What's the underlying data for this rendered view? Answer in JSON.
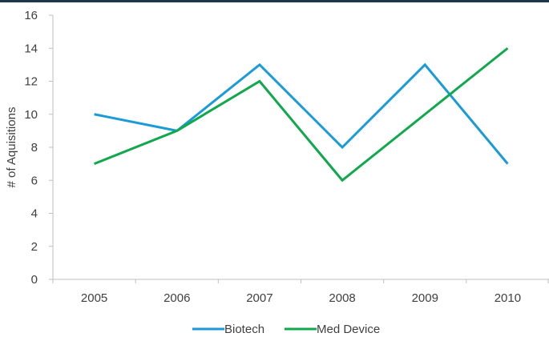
{
  "colors": {
    "top_bar": "#1f3550",
    "axis": "#bfbfbf",
    "text": "#404040"
  },
  "chart_data": {
    "type": "line",
    "title": "",
    "xlabel": "",
    "ylabel": "# of Aquisitions",
    "categories": [
      "2005",
      "2006",
      "2007",
      "2008",
      "2009",
      "2010"
    ],
    "ylim": [
      0,
      16
    ],
    "yticks": [
      0,
      2,
      4,
      6,
      8,
      10,
      12,
      14,
      16
    ],
    "grid": false,
    "legend_position": "bottom",
    "series": [
      {
        "name": "Biotech",
        "color": "#1a9ad6",
        "values": [
          10,
          9,
          13,
          8,
          13,
          7
        ]
      },
      {
        "name": "Med Device",
        "color": "#0fa84a",
        "values": [
          7,
          9,
          12,
          6,
          10,
          14
        ]
      }
    ]
  }
}
